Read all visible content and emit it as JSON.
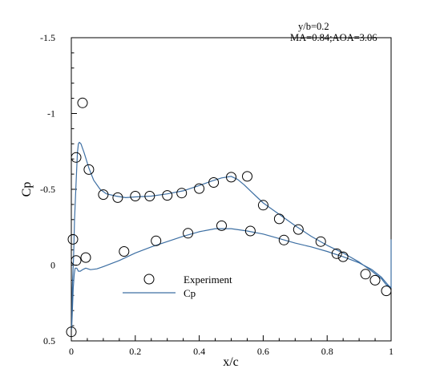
{
  "chart_data": {
    "type": "line",
    "xlabel": "x/c",
    "ylabel": "Cp",
    "xlim": [
      0,
      1
    ],
    "ylim": [
      0.5,
      -1.5
    ],
    "y_axis_inverted": true,
    "grid": false,
    "x_ticks": [
      {
        "value": 0,
        "label": "0"
      },
      {
        "value": 0.2,
        "label": "0.2"
      },
      {
        "value": 0.4,
        "label": "0.4"
      },
      {
        "value": 0.6,
        "label": "0.6"
      },
      {
        "value": 0.8,
        "label": "0.8"
      },
      {
        "value": 1,
        "label": "1"
      }
    ],
    "y_ticks": [
      {
        "value": -1.5,
        "label": "-1.5"
      },
      {
        "value": -1,
        "label": "-1"
      },
      {
        "value": -0.5,
        "label": "-0.5"
      },
      {
        "value": 0,
        "label": "0"
      },
      {
        "value": 0.5,
        "label": "0.5"
      }
    ],
    "annotations": [
      "y/b=0.2",
      "MA=0.84;AOA=3.06"
    ],
    "legend_placement": "lower-left",
    "series": [
      {
        "name": "Experiment",
        "kind": "scatter",
        "marker": "circle-open",
        "color": "#000000",
        "points": [
          [
            0.0,
            0.44
          ],
          [
            0.005,
            -0.17
          ],
          [
            0.015,
            -0.71
          ],
          [
            0.015,
            -0.03
          ],
          [
            0.035,
            -1.07
          ],
          [
            0.045,
            -0.05
          ],
          [
            0.055,
            -0.63
          ],
          [
            0.1,
            -0.465
          ],
          [
            0.145,
            -0.445
          ],
          [
            0.165,
            -0.09
          ],
          [
            0.2,
            -0.455
          ],
          [
            0.245,
            -0.455
          ],
          [
            0.265,
            -0.16
          ],
          [
            0.3,
            -0.46
          ],
          [
            0.345,
            -0.475
          ],
          [
            0.365,
            -0.21
          ],
          [
            0.4,
            -0.505
          ],
          [
            0.445,
            -0.545
          ],
          [
            0.47,
            -0.26
          ],
          [
            0.5,
            -0.58
          ],
          [
            0.55,
            -0.585
          ],
          [
            0.56,
            -0.225
          ],
          [
            0.6,
            -0.395
          ],
          [
            0.65,
            -0.305
          ],
          [
            0.665,
            -0.165
          ],
          [
            0.71,
            -0.235
          ],
          [
            0.78,
            -0.155
          ],
          [
            0.83,
            -0.075
          ],
          [
            0.85,
            -0.055
          ],
          [
            0.92,
            0.06
          ],
          [
            0.95,
            0.1
          ],
          [
            0.985,
            0.17
          ]
        ]
      },
      {
        "name": "Cp",
        "kind": "line",
        "color": "#3d6fa3",
        "points": [
          [
            1.0,
            0.15
          ],
          [
            0.985,
            0.13
          ],
          [
            0.97,
            0.09
          ],
          [
            0.94,
            0.04
          ],
          [
            0.9,
            -0.02
          ],
          [
            0.85,
            -0.08
          ],
          [
            0.8,
            -0.13
          ],
          [
            0.75,
            -0.19
          ],
          [
            0.7,
            -0.26
          ],
          [
            0.66,
            -0.32
          ],
          [
            0.62,
            -0.38
          ],
          [
            0.6,
            -0.41
          ],
          [
            0.58,
            -0.45
          ],
          [
            0.56,
            -0.49
          ],
          [
            0.54,
            -0.53
          ],
          [
            0.52,
            -0.565
          ],
          [
            0.5,
            -0.585
          ],
          [
            0.47,
            -0.575
          ],
          [
            0.44,
            -0.555
          ],
          [
            0.4,
            -0.525
          ],
          [
            0.35,
            -0.49
          ],
          [
            0.3,
            -0.47
          ],
          [
            0.25,
            -0.455
          ],
          [
            0.2,
            -0.45
          ],
          [
            0.17,
            -0.445
          ],
          [
            0.14,
            -0.455
          ],
          [
            0.11,
            -0.47
          ],
          [
            0.09,
            -0.5
          ],
          [
            0.07,
            -0.56
          ],
          [
            0.055,
            -0.64
          ],
          [
            0.04,
            -0.74
          ],
          [
            0.03,
            -0.8
          ],
          [
            0.025,
            -0.81
          ],
          [
            0.022,
            -0.8
          ],
          [
            0.019,
            -0.74
          ],
          [
            0.015,
            -0.55
          ],
          [
            0.01,
            -0.3
          ],
          [
            0.007,
            -0.05
          ],
          [
            0.005,
            0.05
          ],
          [
            0.003,
            0.15
          ],
          [
            0.002,
            0.3
          ],
          [
            0.001,
            0.42
          ],
          [
            0.002,
            0.37
          ],
          [
            0.004,
            0.26
          ],
          [
            0.006,
            0.15
          ],
          [
            0.009,
            0.06
          ],
          [
            0.012,
            0.02
          ],
          [
            0.017,
            0.02
          ],
          [
            0.022,
            0.04
          ],
          [
            0.028,
            0.04
          ],
          [
            0.035,
            0.03
          ],
          [
            0.045,
            0.02
          ],
          [
            0.06,
            0.03
          ],
          [
            0.08,
            0.025
          ],
          [
            0.1,
            0.01
          ],
          [
            0.15,
            -0.03
          ],
          [
            0.2,
            -0.08
          ],
          [
            0.25,
            -0.12
          ],
          [
            0.3,
            -0.155
          ],
          [
            0.35,
            -0.19
          ],
          [
            0.4,
            -0.22
          ],
          [
            0.45,
            -0.24
          ],
          [
            0.5,
            -0.24
          ],
          [
            0.55,
            -0.225
          ],
          [
            0.6,
            -0.205
          ],
          [
            0.65,
            -0.175
          ],
          [
            0.7,
            -0.145
          ],
          [
            0.75,
            -0.12
          ],
          [
            0.8,
            -0.09
          ],
          [
            0.85,
            -0.055
          ],
          [
            0.9,
            -0.015
          ],
          [
            0.94,
            0.03
          ],
          [
            0.97,
            0.08
          ],
          [
            0.99,
            0.13
          ],
          [
            1.0,
            0.15
          ],
          [
            1.0,
            -0.17
          ]
        ]
      }
    ]
  }
}
